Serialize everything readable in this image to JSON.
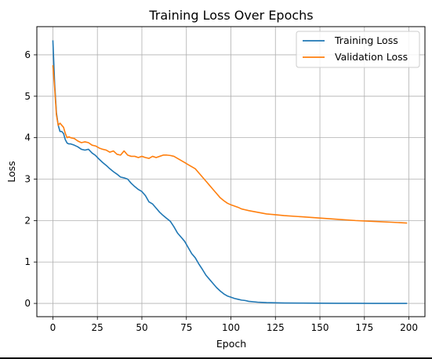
{
  "chart_data": {
    "type": "line",
    "title": "Training Loss Over Epochs",
    "xlabel": "Epoch",
    "ylabel": "Loss",
    "xlim": [
      -9,
      209
    ],
    "ylim": [
      -0.32,
      6.68
    ],
    "xticks": [
      0,
      25,
      50,
      75,
      100,
      125,
      150,
      175,
      200
    ],
    "yticks": [
      0,
      1,
      2,
      3,
      4,
      5,
      6
    ],
    "grid": true,
    "legend_position": "top-right",
    "series": [
      {
        "name": "Training Loss",
        "color": "#1f77b4",
        "x": [
          0,
          1,
          2,
          3,
          4,
          5,
          6,
          7,
          8,
          9,
          10,
          12,
          14,
          16,
          18,
          20,
          22,
          24,
          26,
          28,
          30,
          32,
          34,
          36,
          38,
          40,
          42,
          44,
          46,
          48,
          50,
          52,
          54,
          56,
          58,
          60,
          62,
          64,
          66,
          68,
          70,
          72,
          74,
          76,
          78,
          80,
          82,
          84,
          86,
          88,
          90,
          92,
          94,
          96,
          98,
          100,
          102,
          104,
          106,
          108,
          110,
          115,
          120,
          125,
          130,
          140,
          150,
          160,
          170,
          180,
          190,
          199
        ],
        "values": [
          6.35,
          5.3,
          4.6,
          4.3,
          4.15,
          4.15,
          4.1,
          3.95,
          3.87,
          3.85,
          3.85,
          3.82,
          3.78,
          3.72,
          3.7,
          3.72,
          3.63,
          3.57,
          3.48,
          3.4,
          3.33,
          3.25,
          3.18,
          3.12,
          3.05,
          3.03,
          3.0,
          2.9,
          2.82,
          2.75,
          2.7,
          2.6,
          2.45,
          2.4,
          2.3,
          2.2,
          2.12,
          2.05,
          1.98,
          1.85,
          1.7,
          1.6,
          1.5,
          1.35,
          1.2,
          1.1,
          0.95,
          0.82,
          0.68,
          0.58,
          0.48,
          0.38,
          0.3,
          0.23,
          0.18,
          0.15,
          0.12,
          0.1,
          0.08,
          0.07,
          0.05,
          0.03,
          0.02,
          0.015,
          0.01,
          0.008,
          0.005,
          0.003,
          0.002,
          0.001,
          0.001,
          0.001
        ]
      },
      {
        "name": "Validation Loss",
        "color": "#ff7f0e",
        "x": [
          0,
          1,
          2,
          3,
          4,
          5,
          6,
          7,
          8,
          9,
          10,
          12,
          14,
          16,
          18,
          20,
          22,
          24,
          26,
          28,
          30,
          32,
          34,
          36,
          38,
          40,
          42,
          44,
          46,
          48,
          50,
          52,
          54,
          56,
          58,
          60,
          62,
          64,
          66,
          68,
          70,
          72,
          74,
          76,
          78,
          80,
          82,
          84,
          86,
          88,
          90,
          92,
          94,
          96,
          98,
          100,
          102,
          104,
          106,
          108,
          110,
          115,
          120,
          125,
          130,
          140,
          150,
          160,
          170,
          180,
          190,
          199
        ],
        "values": [
          5.75,
          5.2,
          4.55,
          4.3,
          4.35,
          4.3,
          4.25,
          4.1,
          4.0,
          4.02,
          4.0,
          3.98,
          3.92,
          3.88,
          3.9,
          3.88,
          3.82,
          3.8,
          3.75,
          3.72,
          3.7,
          3.65,
          3.68,
          3.6,
          3.58,
          3.68,
          3.58,
          3.55,
          3.55,
          3.52,
          3.55,
          3.52,
          3.5,
          3.55,
          3.52,
          3.55,
          3.58,
          3.58,
          3.57,
          3.55,
          3.5,
          3.45,
          3.4,
          3.35,
          3.3,
          3.25,
          3.15,
          3.05,
          2.95,
          2.85,
          2.75,
          2.65,
          2.55,
          2.48,
          2.42,
          2.38,
          2.35,
          2.32,
          2.28,
          2.26,
          2.24,
          2.2,
          2.16,
          2.14,
          2.12,
          2.09,
          2.06,
          2.03,
          2.0,
          1.98,
          1.96,
          1.94
        ]
      }
    ]
  }
}
